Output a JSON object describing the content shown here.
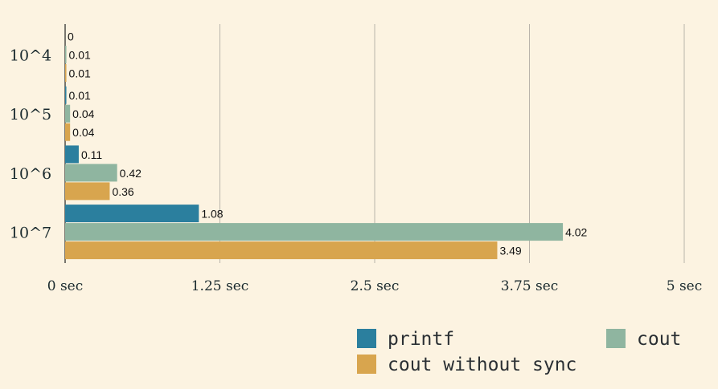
{
  "chart_data": {
    "type": "bar",
    "orientation": "horizontal",
    "categories": [
      "10^4",
      "10^5",
      "10^6",
      "10^7"
    ],
    "series": [
      {
        "name": "printf",
        "values": [
          0,
          0.01,
          0.11,
          1.08
        ],
        "color": "#2b7f9e"
      },
      {
        "name": "cout",
        "values": [
          0.01,
          0.04,
          0.42,
          4.02
        ],
        "color": "#8fb5a0"
      },
      {
        "name": "cout without sync",
        "values": [
          0.01,
          0.04,
          0.36,
          3.49
        ],
        "color": "#d8a54e"
      }
    ],
    "value_labels": [
      [
        "0",
        "0.01",
        "0.11",
        "1.08"
      ],
      [
        "0.01",
        "0.04",
        "0.42",
        "4.02"
      ],
      [
        "0.01",
        "0.04",
        "0.36",
        "3.49"
      ]
    ],
    "xticks": [
      0,
      1.25,
      2.5,
      3.75,
      5
    ],
    "xtick_labels": [
      "0 sec",
      "1.25 sec",
      "2.5 sec",
      "3.75 sec",
      "5 sec"
    ],
    "xlim": [
      0,
      5
    ],
    "grid": true,
    "legend_position": "bottom-right"
  }
}
